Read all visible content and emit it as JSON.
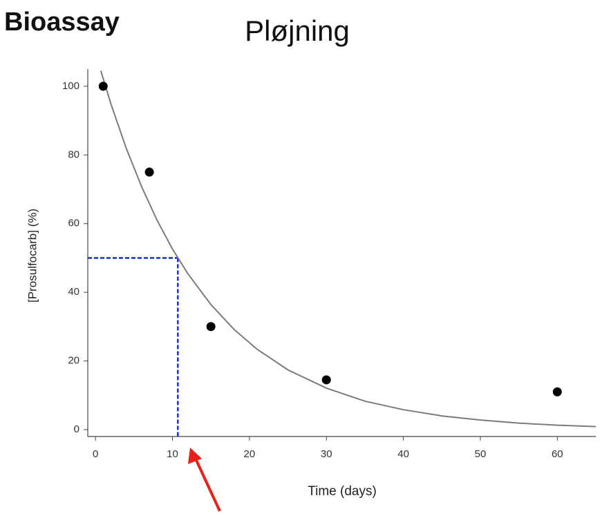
{
  "heading": "Bioassay",
  "chart_data": {
    "type": "scatter",
    "title": "Pløjning",
    "x_label": "Time (days)",
    "y_label": "[Prosulfocarb] (%)",
    "x": [
      1,
      7,
      15,
      30,
      60
    ],
    "values": [
      100,
      75,
      30,
      14.5,
      11
    ],
    "color": "#000000",
    "fit": {
      "x": [
        0.7,
        2,
        4,
        6,
        8,
        10,
        12,
        15,
        18,
        21,
        25,
        30,
        35,
        40,
        45,
        50,
        55,
        60,
        65
      ],
      "values": [
        104.5,
        94.9,
        81.9,
        70.7,
        61.0,
        52.6,
        45.4,
        36.4,
        29.2,
        23.4,
        17.4,
        12.1,
        8.3,
        5.8,
        4.0,
        2.8,
        1.9,
        1.3,
        0.9
      ],
      "color": "#7a7a7a"
    },
    "half_life": {
      "x": 10.7,
      "y": 50,
      "color": "#1a2ecc"
    },
    "xlim": [
      -1,
      65
    ],
    "xticks": [
      0,
      10,
      20,
      30,
      40,
      50,
      60
    ],
    "ylim": [
      -2,
      105
    ],
    "yticks": [
      0,
      20,
      40,
      60,
      80,
      100
    ],
    "grid": false
  }
}
